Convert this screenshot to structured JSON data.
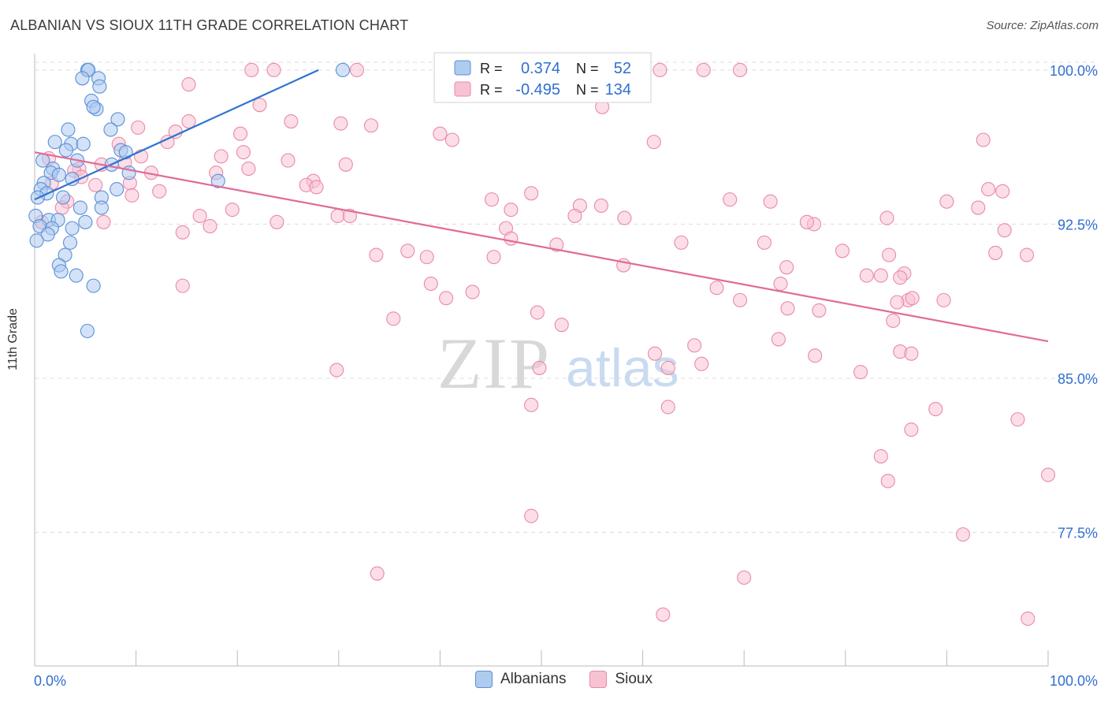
{
  "title": "ALBANIAN VS SIOUX 11TH GRADE CORRELATION CHART",
  "source": "Source: ZipAtlas.com",
  "watermark": {
    "zip": "ZIP",
    "atlas": "atlas"
  },
  "legend": {
    "rows": [
      {
        "r_label": "R =",
        "r_value": "0.374",
        "n_label": "N =",
        "n_value": "52"
      },
      {
        "r_label": "R =",
        "r_value": "-0.495",
        "n_label": "N =",
        "n_value": "134"
      }
    ]
  },
  "colors": {
    "albanians_fill": "#aecbf0",
    "albanians_stroke": "#5b90d6",
    "albanians_line": "#2f74d0",
    "sioux_fill": "#f7c3d3",
    "sioux_stroke": "#e98aa8",
    "sioux_line": "#e06b97",
    "value_text": "#2f6fd0",
    "grid": "#dddddd"
  },
  "chart_data": {
    "type": "scatter",
    "title": "ALBANIAN VS SIOUX 11TH GRADE CORRELATION CHART",
    "xlabel": "",
    "ylabel": "11th Grade",
    "xlim": [
      0,
      100
    ],
    "ylim": [
      71.0,
      100.8
    ],
    "x_tick_labels": [
      "0.0%",
      "100.0%"
    ],
    "y_ticks": [
      77.5,
      85.0,
      92.5,
      100.0
    ],
    "y_tick_labels": [
      "77.5%",
      "85.0%",
      "92.5%",
      "100.0%"
    ],
    "grid": true,
    "legend_position": "bottom-center",
    "series": [
      {
        "name": "Albanians",
        "r": 0.374,
        "n": 52,
        "trend": {
          "x": [
            0,
            28
          ],
          "y": [
            93.7,
            100.0
          ]
        },
        "points": [
          [
            5.2,
            100
          ],
          [
            5.3,
            100
          ],
          [
            30.4,
            100
          ],
          [
            4.7,
            99.6
          ],
          [
            6.3,
            99.6
          ],
          [
            6.4,
            99.2
          ],
          [
            5.6,
            98.5
          ],
          [
            6.1,
            98.1
          ],
          [
            5.8,
            98.2
          ],
          [
            8.2,
            97.6
          ],
          [
            7.5,
            97.1
          ],
          [
            3.3,
            97.1
          ],
          [
            2.0,
            96.5
          ],
          [
            3.6,
            96.4
          ],
          [
            4.8,
            96.4
          ],
          [
            3.1,
            96.1
          ],
          [
            8.5,
            96.1
          ],
          [
            9.0,
            96.0
          ],
          [
            4.2,
            95.6
          ],
          [
            0.8,
            95.6
          ],
          [
            1.8,
            95.2
          ],
          [
            7.6,
            95.4
          ],
          [
            1.6,
            95.0
          ],
          [
            9.3,
            95.0
          ],
          [
            2.4,
            94.9
          ],
          [
            3.7,
            94.7
          ],
          [
            0.9,
            94.5
          ],
          [
            18.1,
            94.6
          ],
          [
            8.1,
            94.2
          ],
          [
            0.6,
            94.2
          ],
          [
            1.2,
            94.0
          ],
          [
            2.8,
            93.8
          ],
          [
            6.6,
            93.8
          ],
          [
            0.3,
            93.8
          ],
          [
            6.6,
            93.3
          ],
          [
            4.5,
            93.3
          ],
          [
            0.1,
            92.9
          ],
          [
            1.4,
            92.7
          ],
          [
            2.3,
            92.7
          ],
          [
            5.0,
            92.6
          ],
          [
            0.5,
            92.4
          ],
          [
            1.7,
            92.3
          ],
          [
            3.7,
            92.3
          ],
          [
            1.3,
            92.0
          ],
          [
            0.2,
            91.7
          ],
          [
            3.5,
            91.6
          ],
          [
            3.0,
            91.0
          ],
          [
            2.4,
            90.5
          ],
          [
            2.6,
            90.2
          ],
          [
            4.1,
            90.0
          ],
          [
            5.8,
            89.5
          ],
          [
            5.2,
            87.3
          ]
        ]
      },
      {
        "name": "Sioux",
        "r": -0.495,
        "n": 134,
        "trend": {
          "x": [
            0,
            100
          ],
          "y": [
            96.0,
            86.8
          ]
        },
        "points": [
          [
            21.4,
            100
          ],
          [
            23.6,
            100
          ],
          [
            31.8,
            100
          ],
          [
            61.7,
            100
          ],
          [
            66.0,
            100
          ],
          [
            69.6,
            100
          ],
          [
            15.2,
            99.3
          ],
          [
            56.0,
            98.2
          ],
          [
            22.2,
            98.3
          ],
          [
            15.2,
            97.5
          ],
          [
            25.3,
            97.5
          ],
          [
            30.2,
            97.4
          ],
          [
            33.2,
            97.3
          ],
          [
            10.2,
            97.2
          ],
          [
            13.9,
            97.0
          ],
          [
            20.3,
            96.9
          ],
          [
            40.0,
            96.9
          ],
          [
            41.2,
            96.6
          ],
          [
            13.1,
            96.5
          ],
          [
            8.3,
            96.4
          ],
          [
            61.1,
            96.5
          ],
          [
            93.6,
            96.6
          ],
          [
            20.6,
            96.0
          ],
          [
            10.5,
            95.8
          ],
          [
            1.4,
            95.7
          ],
          [
            25.0,
            95.6
          ],
          [
            18.4,
            95.8
          ],
          [
            30.7,
            95.4
          ],
          [
            8.9,
            95.5
          ],
          [
            6.6,
            95.4
          ],
          [
            21.1,
            95.2
          ],
          [
            4.4,
            95.2
          ],
          [
            3.9,
            95.1
          ],
          [
            11.5,
            95.0
          ],
          [
            17.9,
            95.0
          ],
          [
            4.6,
            94.8
          ],
          [
            1.7,
            94.5
          ],
          [
            27.5,
            94.6
          ],
          [
            6.0,
            94.4
          ],
          [
            9.4,
            94.5
          ],
          [
            26.8,
            94.4
          ],
          [
            27.8,
            94.3
          ],
          [
            12.3,
            94.1
          ],
          [
            49.0,
            94.0
          ],
          [
            9.6,
            93.9
          ],
          [
            45.1,
            93.7
          ],
          [
            95.5,
            94.1
          ],
          [
            94.1,
            94.2
          ],
          [
            68.6,
            93.7
          ],
          [
            72.6,
            93.6
          ],
          [
            3.2,
            93.6
          ],
          [
            53.8,
            93.4
          ],
          [
            55.9,
            93.4
          ],
          [
            93.1,
            93.3
          ],
          [
            2.7,
            93.3
          ],
          [
            19.5,
            93.2
          ],
          [
            29.9,
            92.9
          ],
          [
            31.1,
            92.9
          ],
          [
            47.0,
            93.2
          ],
          [
            53.3,
            92.9
          ],
          [
            16.3,
            92.9
          ],
          [
            58.2,
            92.8
          ],
          [
            0.7,
            92.6
          ],
          [
            23.9,
            92.6
          ],
          [
            46.5,
            92.3
          ],
          [
            76.9,
            92.5
          ],
          [
            84.1,
            92.8
          ],
          [
            6.8,
            92.6
          ],
          [
            17.3,
            92.4
          ],
          [
            90.0,
            93.6
          ],
          [
            14.6,
            92.1
          ],
          [
            76.2,
            92.6
          ],
          [
            95.7,
            92.2
          ],
          [
            63.8,
            91.6
          ],
          [
            51.5,
            91.5
          ],
          [
            47.0,
            91.8
          ],
          [
            72.0,
            91.6
          ],
          [
            36.8,
            91.2
          ],
          [
            33.7,
            91.0
          ],
          [
            79.7,
            91.2
          ],
          [
            38.7,
            90.9
          ],
          [
            45.3,
            90.9
          ],
          [
            84.3,
            91.0
          ],
          [
            94.8,
            91.1
          ],
          [
            97.9,
            91.0
          ],
          [
            58.1,
            90.5
          ],
          [
            74.2,
            90.4
          ],
          [
            82.1,
            90.0
          ],
          [
            83.5,
            90.0
          ],
          [
            85.8,
            90.1
          ],
          [
            85.4,
            89.9
          ],
          [
            14.6,
            89.5
          ],
          [
            39.1,
            89.6
          ],
          [
            67.3,
            89.4
          ],
          [
            73.6,
            89.6
          ],
          [
            43.2,
            89.2
          ],
          [
            40.6,
            88.9
          ],
          [
            69.6,
            88.8
          ],
          [
            74.3,
            88.4
          ],
          [
            77.4,
            88.3
          ],
          [
            86.2,
            88.8
          ],
          [
            85.1,
            88.7
          ],
          [
            86.6,
            88.9
          ],
          [
            89.7,
            88.8
          ],
          [
            49.6,
            88.2
          ],
          [
            35.4,
            87.9
          ],
          [
            84.7,
            87.8
          ],
          [
            52.0,
            87.6
          ],
          [
            73.4,
            86.9
          ],
          [
            65.1,
            86.6
          ],
          [
            85.4,
            86.3
          ],
          [
            61.2,
            86.2
          ],
          [
            77.0,
            86.1
          ],
          [
            86.5,
            86.2
          ],
          [
            49.8,
            85.5
          ],
          [
            65.8,
            85.7
          ],
          [
            29.8,
            85.4
          ],
          [
            62.5,
            85.5
          ],
          [
            81.5,
            85.3
          ],
          [
            49.0,
            83.7
          ],
          [
            62.5,
            83.6
          ],
          [
            88.9,
            83.5
          ],
          [
            97.0,
            83.0
          ],
          [
            86.5,
            82.5
          ],
          [
            83.5,
            81.2
          ],
          [
            84.2,
            80.0
          ],
          [
            100.0,
            80.3
          ],
          [
            49.0,
            78.3
          ],
          [
            91.6,
            77.4
          ],
          [
            33.8,
            75.5
          ],
          [
            70.0,
            75.3
          ],
          [
            62.0,
            73.5
          ],
          [
            98.0,
            73.3
          ]
        ]
      }
    ]
  }
}
